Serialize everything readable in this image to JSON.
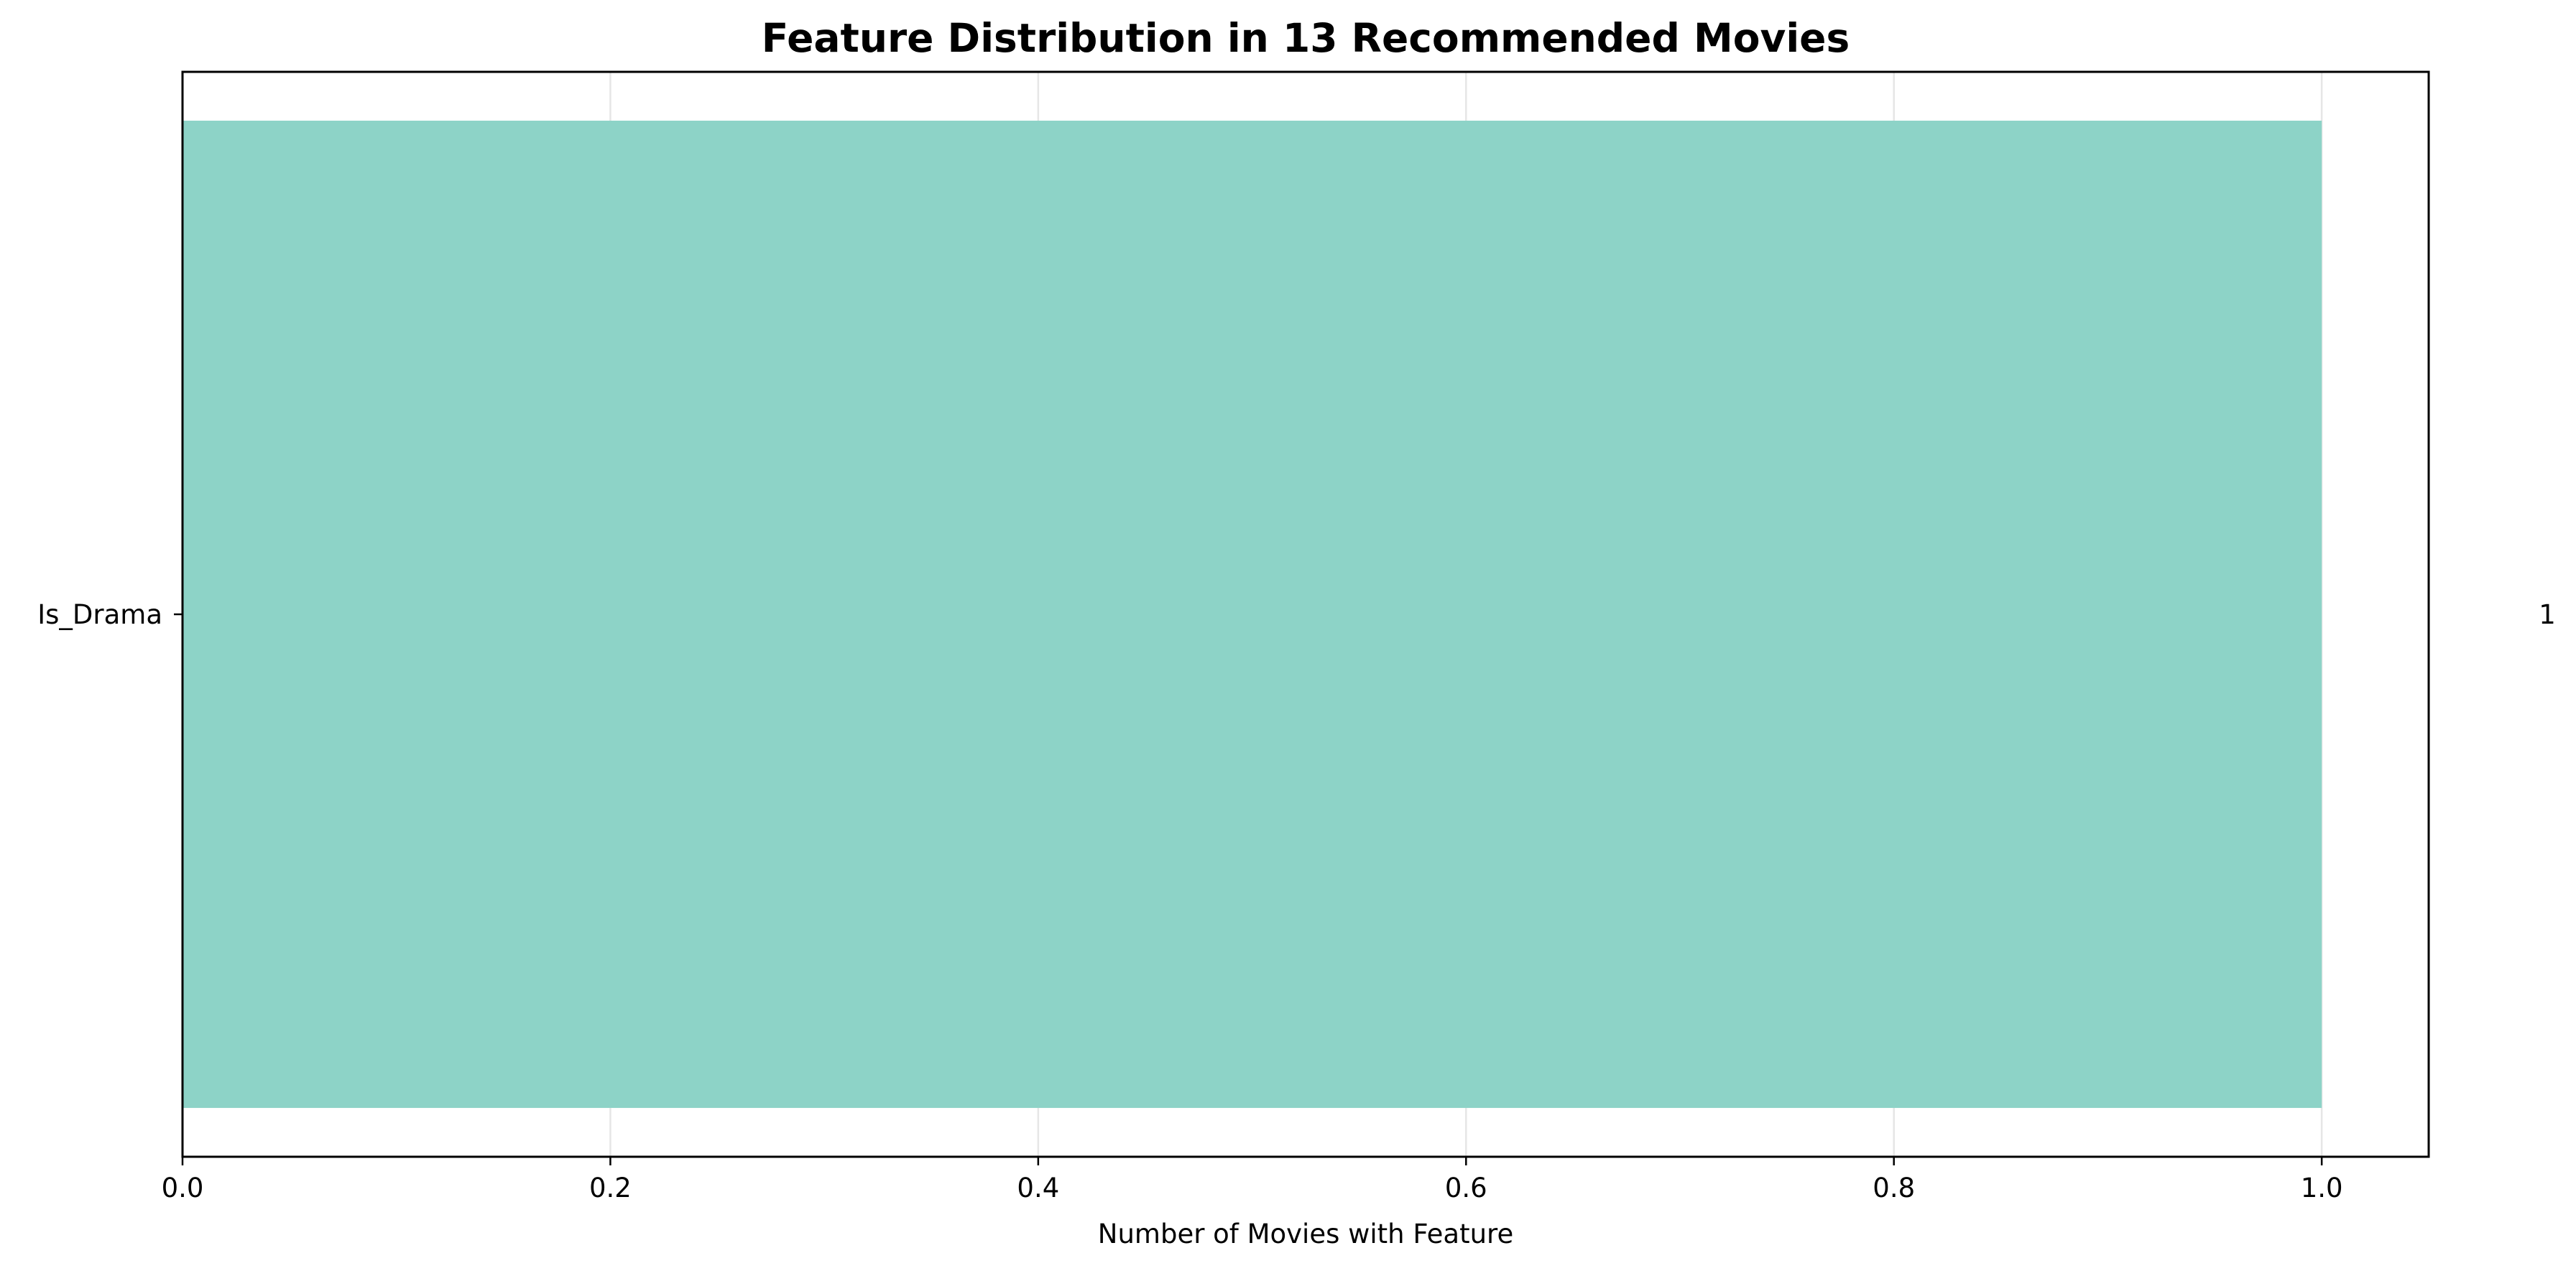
{
  "chart_data": {
    "type": "bar",
    "orientation": "horizontal",
    "title": "Feature Distribution in 13 Recommended Movies",
    "xlabel": "Number of Movies with Feature",
    "ylabel": "",
    "categories": [
      "Is_Drama"
    ],
    "values": [
      1
    ],
    "value_labels": [
      "1"
    ],
    "xlim": [
      0,
      1.05
    ],
    "xticks": [
      0.0,
      0.2,
      0.4,
      0.6,
      0.8,
      1.0
    ],
    "xtick_labels": [
      "0.0",
      "0.2",
      "0.4",
      "0.6",
      "0.8",
      "1.0"
    ],
    "grid": "vertical",
    "bar_color": "#8dd3c7",
    "grid_color": "#e6e6e6"
  }
}
